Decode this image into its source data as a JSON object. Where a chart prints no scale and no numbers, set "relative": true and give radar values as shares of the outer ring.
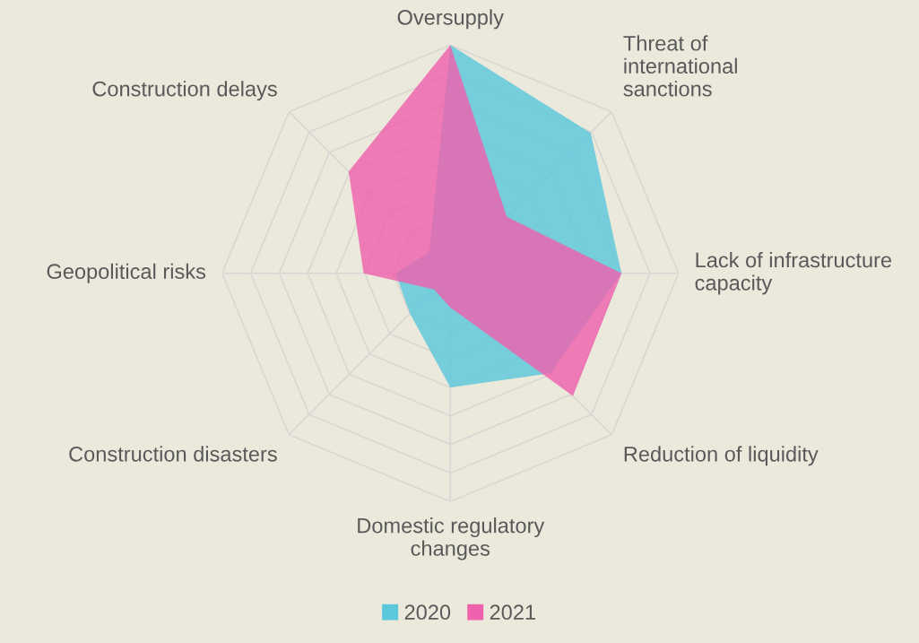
{
  "chart_data": {
    "type": "radar",
    "relative": true,
    "grid": true,
    "legend": "bottom",
    "categories": [
      "Oversupply",
      "Threat of\ninternational\nsanctions",
      "Lack of infrastructure\ncapacity",
      "Reduction of liquidity",
      "Domestic regulatory\nchanges",
      "Construction disasters",
      "Geopolitical risks",
      "Construction delays"
    ],
    "series": [
      {
        "name": "2020",
        "color": "#5bc8dc",
        "values": [
          1.0,
          0.87,
          0.75,
          0.62,
          0.5,
          0.25,
          0.24,
          0.13
        ]
      },
      {
        "name": "2021",
        "color": "#ee62ad",
        "values": [
          1.0,
          0.35,
          0.75,
          0.76,
          0.15,
          0.1,
          0.38,
          0.63
        ]
      }
    ]
  }
}
